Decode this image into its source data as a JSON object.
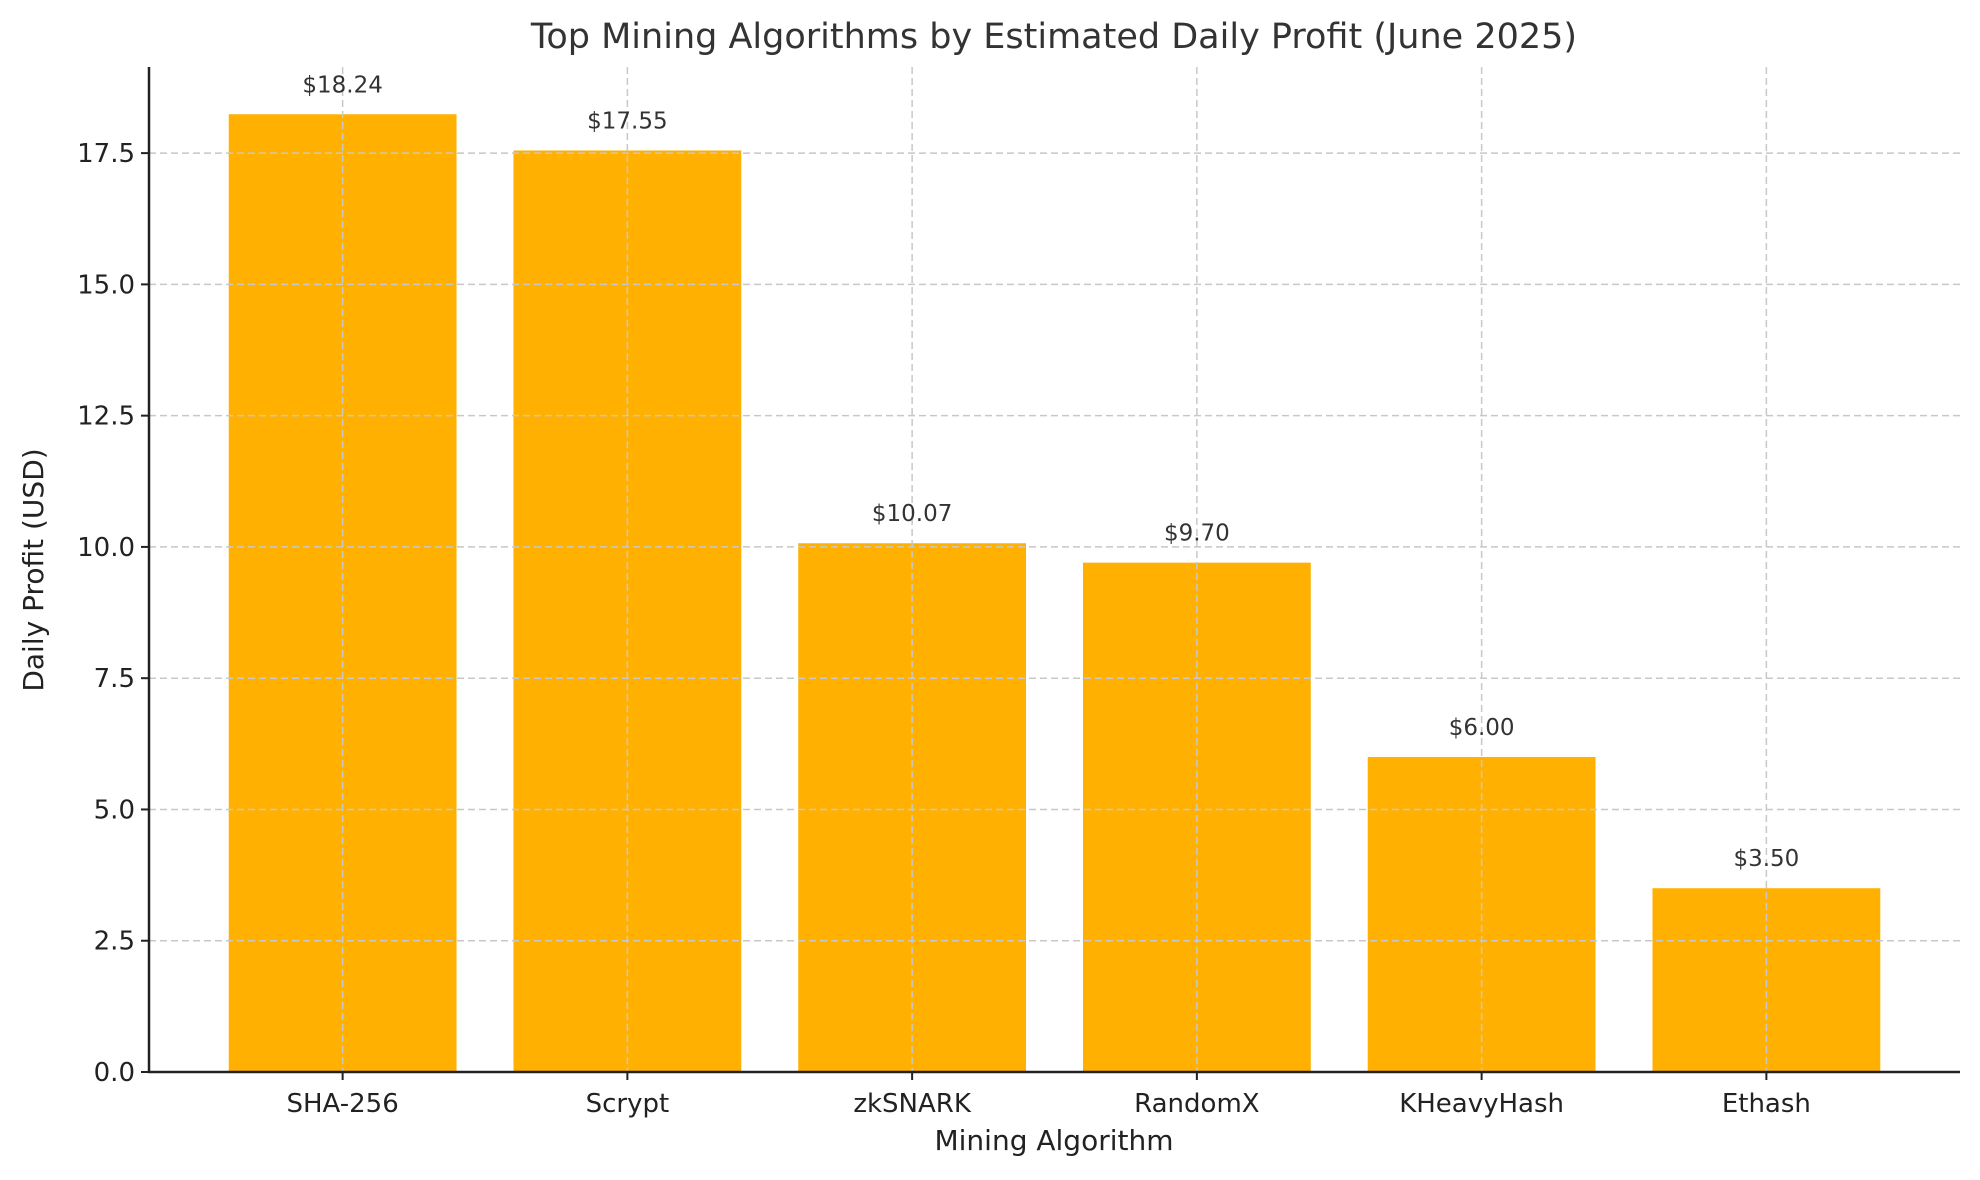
{
  "chart_data": {
    "type": "bar",
    "title": "Top Mining Algorithms by Estimated Daily Profit (June 2025)",
    "xlabel": "Mining Algorithm",
    "ylabel": "Daily Profit (USD)",
    "categories": [
      "SHA-256",
      "Scrypt",
      "zkSNARK",
      "RandomX",
      "KHeavyHash",
      "Ethash"
    ],
    "values": [
      18.24,
      17.55,
      10.07,
      9.7,
      6.0,
      3.5
    ],
    "data_labels": [
      "$18.24",
      "$17.55",
      "$10.07",
      "$9.70",
      "$6.00",
      "$3.50"
    ],
    "ylim": [
      0,
      19.14
    ],
    "yticks": [
      0,
      2.5,
      5,
      7.5,
      10,
      12.5,
      15,
      17.5
    ],
    "ytick_labels": [
      "0.0",
      "2.5",
      "5.0",
      "7.5",
      "10.0",
      "12.5",
      "15.0",
      "17.5"
    ],
    "grid": true,
    "colors": {
      "bar": "#FFB000",
      "axis": "#222222",
      "grid": "#C8C8C8"
    }
  }
}
